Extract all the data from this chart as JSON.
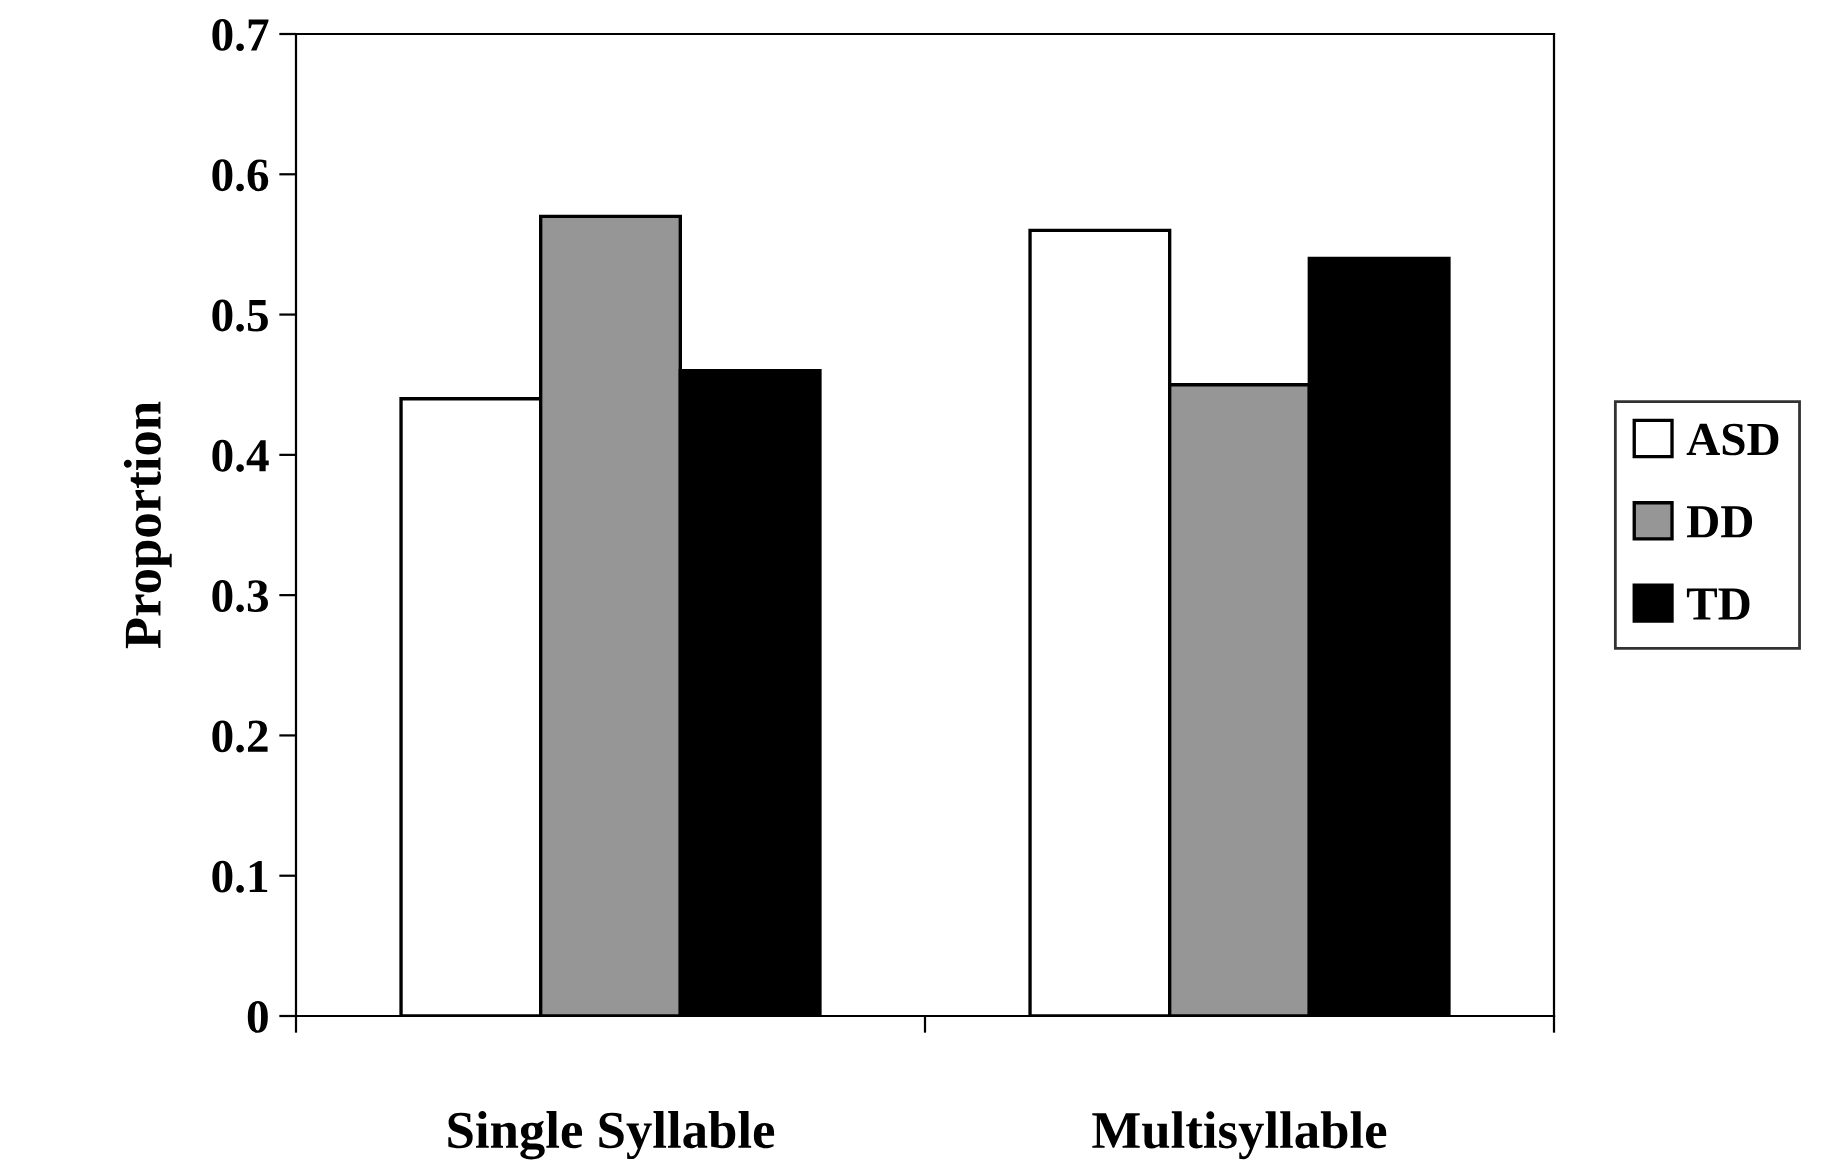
{
  "chart_data": {
    "type": "bar",
    "ylabel": "Proportion",
    "categories": [
      "Single Syllable",
      "Multisyllable"
    ],
    "series": [
      {
        "name": "ASD",
        "color": "#ffffff",
        "values": [
          0.44,
          0.56
        ]
      },
      {
        "name": "DD",
        "color": "#969696",
        "values": [
          0.57,
          0.45
        ]
      },
      {
        "name": "TD",
        "color": "#000000",
        "values": [
          0.46,
          0.54
        ]
      }
    ],
    "ylim": [
      0,
      0.7
    ],
    "yticks": [
      0,
      0.1,
      0.2,
      0.3,
      0.4,
      0.5,
      0.6,
      0.7
    ],
    "grid": false,
    "legend": "right"
  }
}
